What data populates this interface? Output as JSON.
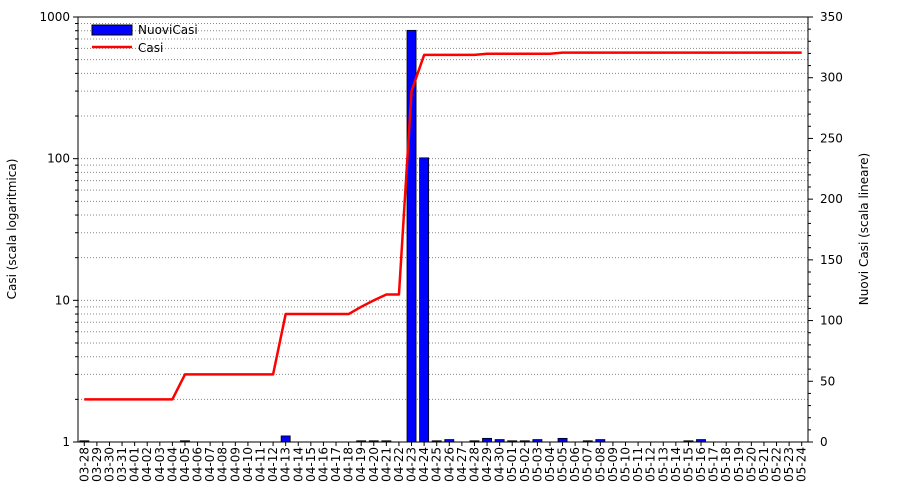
{
  "chart_data": {
    "type": "bar",
    "title": "",
    "ylabel_left": "Casi (scala logaritmica)",
    "ylabel_right": "Nuovi Casi (scala lineare)",
    "left_axis": {
      "scale": "log",
      "ylim": [
        1,
        1000
      ],
      "tick_labels": [
        "1",
        "10",
        "100",
        "1000"
      ]
    },
    "right_axis": {
      "scale": "linear",
      "ylim": [
        0,
        350
      ],
      "tick_labels": [
        "0",
        "50",
        "100",
        "150",
        "200",
        "250",
        "300",
        "350"
      ]
    },
    "grid": "horizontal dotted",
    "legend_position": "top-left",
    "categories": [
      "03-28",
      "03-29",
      "03-30",
      "03-31",
      "04-01",
      "04-02",
      "04-03",
      "04-04",
      "04-05",
      "04-06",
      "04-07",
      "04-08",
      "04-09",
      "04-10",
      "04-11",
      "04-12",
      "04-13",
      "04-14",
      "04-15",
      "04-16",
      "04-17",
      "04-18",
      "04-19",
      "04-20",
      "04-21",
      "04-22",
      "04-23",
      "04-24",
      "04-25",
      "04-26",
      "04-27",
      "04-28",
      "04-29",
      "04-30",
      "05-01",
      "05-02",
      "05-03",
      "05-04",
      "05-05",
      "05-06",
      "05-07",
      "05-08",
      "05-09",
      "05-10",
      "05-11",
      "05-12",
      "05-13",
      "05-14",
      "05-15",
      "05-16",
      "05-17",
      "05-18",
      "05-19",
      "05-20",
      "05-21",
      "05-22",
      "05-23",
      "05-24"
    ],
    "series": [
      {
        "name": "NuoviCasi",
        "type": "bar",
        "axis": "right",
        "color": "#0000ff",
        "values": [
          1,
          0,
          0,
          0,
          0,
          0,
          0,
          0,
          1,
          0,
          0,
          0,
          0,
          0,
          0,
          0,
          5,
          0,
          0,
          0,
          0,
          0,
          1,
          1,
          1,
          0,
          339,
          234,
          1,
          2,
          0,
          1,
          3,
          2,
          1,
          1,
          2,
          0,
          3,
          0,
          1,
          2,
          0,
          0,
          0,
          0,
          0,
          0,
          1,
          2,
          0,
          0,
          0,
          0,
          0,
          0,
          0,
          0
        ]
      },
      {
        "name": "Casi",
        "type": "line",
        "axis": "left",
        "color": "#ff0000",
        "values": [
          2,
          2,
          2,
          2,
          2,
          2,
          2,
          2,
          3,
          3,
          3,
          3,
          3,
          3,
          3,
          3,
          8,
          8,
          8,
          8,
          8,
          8,
          9,
          10,
          11,
          11,
          300,
          540,
          540,
          540,
          540,
          540,
          550,
          550,
          550,
          550,
          550,
          550,
          560,
          560,
          560,
          560,
          560,
          560,
          560,
          560,
          560,
          560,
          560,
          560,
          560,
          560,
          560,
          560,
          560,
          560,
          560,
          560
        ]
      }
    ]
  }
}
